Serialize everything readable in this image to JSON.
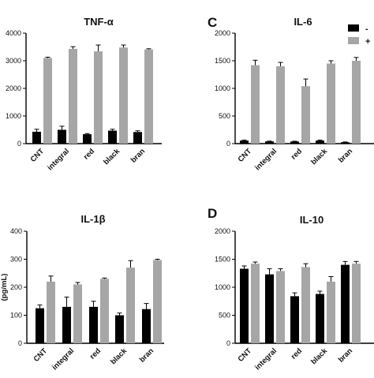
{
  "colors": {
    "untreated": "#000000",
    "treated": "#a6a6a6",
    "error": "#000000",
    "axis": "#000000"
  },
  "legend": {
    "position": "top-right",
    "entries": [
      "-",
      "+"
    ]
  },
  "chart_data": [
    {
      "id": "tnf",
      "type": "bar",
      "letter": "",
      "title": "TNF-α",
      "ylabel": "",
      "ylim": [
        0,
        4000
      ],
      "yticks": [
        0,
        1000,
        2000,
        3000,
        4000
      ],
      "ytick_labels": [
        "0",
        "1000",
        "2000",
        "3000",
        "4000"
      ],
      "categories": [
        "CNT",
        "integral",
        "red",
        "black",
        "bran"
      ],
      "series": [
        {
          "key": "untreated",
          "values": [
            430,
            500,
            340,
            470,
            420
          ],
          "errors": [
            90,
            130,
            25,
            50,
            45
          ]
        },
        {
          "key": "treated",
          "values": [
            3100,
            3430,
            3340,
            3480,
            3410
          ],
          "errors": [
            30,
            80,
            230,
            90,
            25
          ]
        }
      ]
    },
    {
      "id": "il6",
      "type": "bar",
      "letter": "C",
      "title": "IL-6",
      "ylabel": "",
      "ylim": [
        0,
        2000
      ],
      "yticks": [
        0,
        500,
        1000,
        1500,
        2000
      ],
      "ytick_labels": [
        "0",
        "500",
        "1000",
        "1500",
        "2000"
      ],
      "categories": [
        "CNT",
        "integral",
        "red",
        "black",
        "bran"
      ],
      "series": [
        {
          "key": "untreated",
          "values": [
            55,
            40,
            38,
            55,
            25
          ],
          "errors": [
            8,
            6,
            6,
            8,
            5
          ]
        },
        {
          "key": "treated",
          "values": [
            1420,
            1400,
            1040,
            1450,
            1500
          ],
          "errors": [
            90,
            70,
            130,
            50,
            60
          ]
        }
      ]
    },
    {
      "id": "il1b",
      "type": "bar",
      "letter": "",
      "title": "IL-1β",
      "ylabel": "(pg/mL)",
      "ylim": [
        0,
        400
      ],
      "yticks": [
        0,
        100,
        200,
        300,
        400
      ],
      "ytick_labels": [
        "0",
        "100",
        "200",
        "300",
        "400"
      ],
      "categories": [
        "CNT",
        "integral",
        "red",
        "black",
        "bran"
      ],
      "series": [
        {
          "key": "untreated",
          "values": [
            125,
            130,
            130,
            100,
            122
          ],
          "errors": [
            12,
            35,
            20,
            8,
            20
          ]
        },
        {
          "key": "treated",
          "values": [
            220,
            210,
            230,
            270,
            297
          ],
          "errors": [
            20,
            7,
            3,
            25,
            3
          ]
        }
      ]
    },
    {
      "id": "il10",
      "type": "bar",
      "letter": "D",
      "title": "IL-10",
      "ylabel": "",
      "ylim": [
        0,
        2000
      ],
      "yticks": [
        0,
        500,
        1000,
        1500,
        2000
      ],
      "ytick_labels": [
        "0",
        "500",
        "1000",
        "1500",
        "2000"
      ],
      "categories": [
        "CNT",
        "integral",
        "red",
        "black",
        "bran"
      ],
      "series": [
        {
          "key": "untreated",
          "values": [
            1330,
            1230,
            840,
            880,
            1400
          ],
          "errors": [
            50,
            100,
            60,
            50,
            60
          ]
        },
        {
          "key": "treated",
          "values": [
            1420,
            1290,
            1360,
            1100,
            1420
          ],
          "errors": [
            30,
            40,
            60,
            90,
            40
          ]
        }
      ]
    }
  ]
}
